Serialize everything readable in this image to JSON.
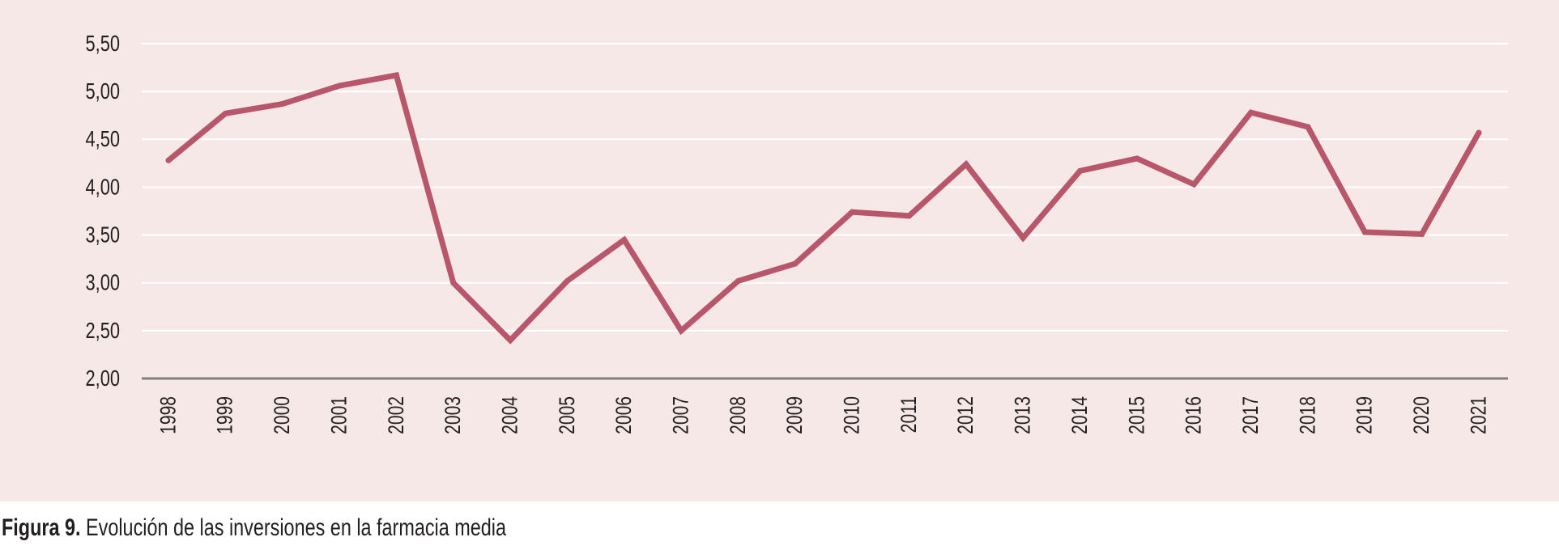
{
  "caption": {
    "label": "Figura 9.",
    "text": "Evolución de las inversiones en la farmacia media"
  },
  "chart_data": {
    "type": "line",
    "title": "",
    "xlabel": "",
    "ylabel": "",
    "x": [
      "1998",
      "1999",
      "2000",
      "2001",
      "2002",
      "2003",
      "2004",
      "2005",
      "2006",
      "2007",
      "2008",
      "2009",
      "2010",
      "2011",
      "2012",
      "2013",
      "2014",
      "2015",
      "2016",
      "2017",
      "2018",
      "2019",
      "2020",
      "2021"
    ],
    "series": [
      {
        "values": [
          4.28,
          4.77,
          4.87,
          5.06,
          5.17,
          3.0,
          2.4,
          3.02,
          3.45,
          2.5,
          3.02,
          3.2,
          3.74,
          3.7,
          4.24,
          3.47,
          4.17,
          4.3,
          4.03,
          4.78,
          4.63,
          3.53,
          3.51,
          4.57
        ],
        "color": "#b8566b"
      }
    ],
    "yticks": [
      "2,00",
      "2,50",
      "3,00",
      "3,50",
      "4,00",
      "4,50",
      "5,00",
      "5,50"
    ],
    "ylim": [
      2.0,
      5.5
    ],
    "grid": true,
    "legend": "none",
    "colors": {
      "background": "#f7e8e8",
      "gridline": "#ffffff",
      "axis": "#808080",
      "line": "#b8566b"
    }
  }
}
